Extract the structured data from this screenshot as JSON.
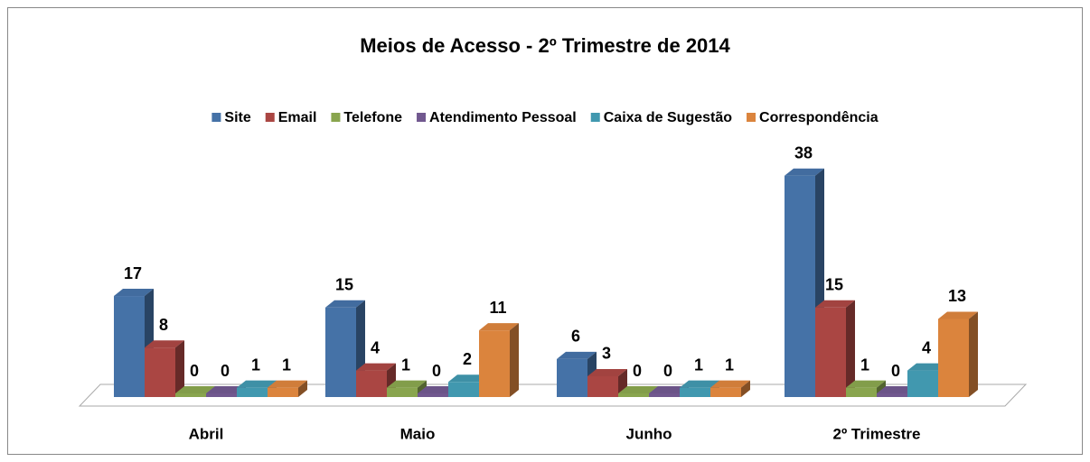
{
  "chart_data": {
    "type": "bar3d",
    "title": "Meios de Acesso - 2º Trimestre de 2014",
    "categories": [
      "Abril",
      "Maio",
      "Junho",
      "2º Trimestre"
    ],
    "series": [
      {
        "name": "Site",
        "color": "#4572a7",
        "values": [
          17,
          15,
          6,
          38
        ]
      },
      {
        "name": "Email",
        "color": "#aa4643",
        "values": [
          8,
          4,
          3,
          15
        ]
      },
      {
        "name": "Telefone",
        "color": "#89a54e",
        "values": [
          0,
          1,
          0,
          1
        ]
      },
      {
        "name": "Atendimento Pessoal",
        "color": "#71588f",
        "values": [
          0,
          0,
          0,
          0
        ]
      },
      {
        "name": "Caixa de Sugestão",
        "color": "#4198af",
        "values": [
          1,
          2,
          1,
          4
        ]
      },
      {
        "name": "Correspondência",
        "color": "#db843d",
        "values": [
          1,
          11,
          1,
          13
        ]
      }
    ]
  }
}
